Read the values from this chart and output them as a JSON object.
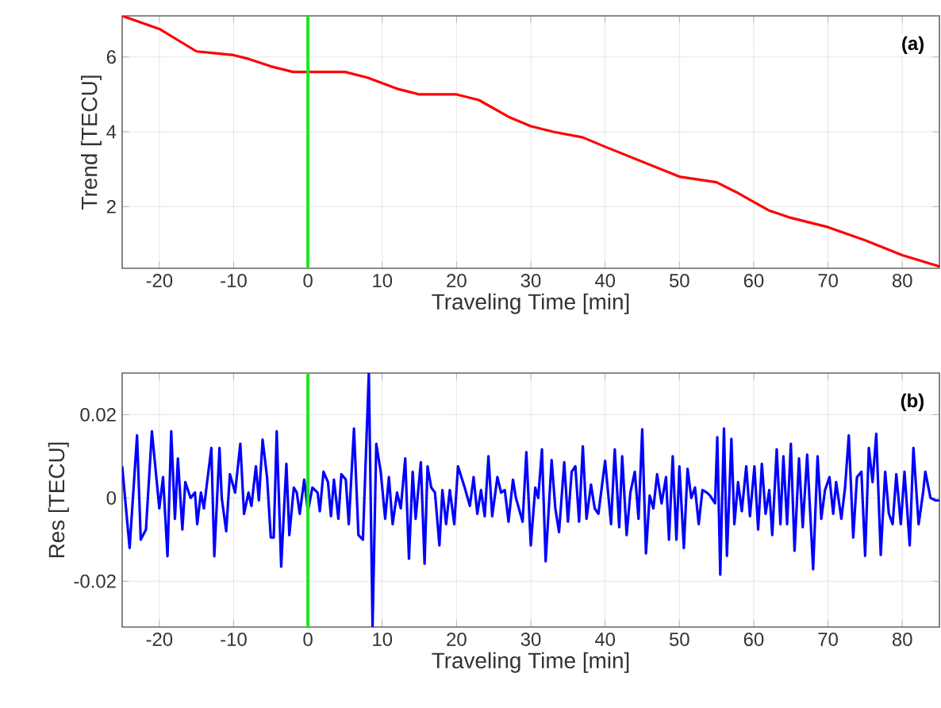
{
  "chart_data": [
    {
      "type": "line",
      "ylabel": "Trend [TECU]",
      "xlabel": "Traveling Time [min]",
      "annotations": [
        "(a)"
      ],
      "grid": true,
      "xlim": [
        -25,
        85
      ],
      "ylim": [
        0.35,
        7.1
      ],
      "xticks": [
        -20,
        -10,
        0,
        10,
        20,
        30,
        40,
        50,
        60,
        70,
        80
      ],
      "yticks": [
        2,
        4,
        6
      ],
      "ref_lines": [
        {
          "axis": "x",
          "value": 0,
          "color": "#1ee61e"
        }
      ],
      "x": [
        -25,
        -20,
        -15,
        -10,
        -8,
        -5,
        -2,
        0,
        5,
        8,
        12,
        15,
        20,
        23,
        27,
        30,
        33,
        37,
        40,
        45,
        50,
        55,
        58,
        62,
        65,
        70,
        75,
        80,
        85
      ],
      "series": [
        {
          "color": "#ff0000",
          "values": [
            7.1,
            6.75,
            6.15,
            6.05,
            5.95,
            5.75,
            5.6,
            5.6,
            5.6,
            5.45,
            5.15,
            5.0,
            5.0,
            4.85,
            4.4,
            4.15,
            4.0,
            3.85,
            3.6,
            3.2,
            2.8,
            2.65,
            2.35,
            1.9,
            1.7,
            1.45,
            1.1,
            0.7,
            0.4
          ]
        }
      ]
    },
    {
      "type": "line",
      "ylabel": "Res [TECU]",
      "xlabel": "Traveling Time [min]",
      "annotations": [
        "(b)"
      ],
      "grid": true,
      "xlim": [
        -25,
        85
      ],
      "ylim": [
        -0.031,
        0.03
      ],
      "xticks": [
        -20,
        -10,
        0,
        10,
        20,
        30,
        40,
        50,
        60,
        70,
        80
      ],
      "yticks": [
        -0.02,
        0,
        0.02
      ],
      "ref_lines": [
        {
          "axis": "x",
          "value": 0,
          "color": "#1ee61e"
        }
      ],
      "x": [
        -25,
        -24,
        -23,
        -22.5,
        -21.8,
        -21.0,
        -20,
        -19.5,
        -18.9,
        -18.4,
        -17.9,
        -17.5,
        -16.9,
        -16.5,
        -15.8,
        -15.2,
        -14.9,
        -14.4,
        -14,
        -13.7,
        -13,
        -12.6,
        -11.9,
        -11.6,
        -11,
        -10.5,
        -9.8,
        -9.1,
        -8.6,
        -8.0,
        -7.6,
        -7.0,
        -6.6,
        -6.1,
        -5.5,
        -5.0,
        -4.6,
        -4.2,
        -3.6,
        -2.9,
        -2.5,
        -1.9,
        -1.5,
        -1.1,
        -0.5,
        0,
        0.6,
        1.3,
        1.6,
        2.1,
        2.7,
        3.1,
        3.5,
        4.1,
        4.5,
        5.1,
        5.5,
        6.2,
        6.8,
        7.4,
        8.2,
        8.7,
        9.2,
        9.8,
        10.4,
        10.9,
        11.4,
        12,
        12.5,
        13.1,
        13.6,
        14.1,
        14.5,
        15.2,
        15.7,
        16.1,
        16.6,
        17.1,
        17.7,
        18.1,
        18.6,
        19.1,
        19.7,
        20.2,
        21.1,
        21.8,
        22.3,
        22.8,
        23.3,
        23.8,
        24.3,
        24.8,
        25.5,
        26.0,
        26.5,
        27.0,
        27.6,
        28.0,
        28.9,
        29.4,
        30.0,
        30.6,
        31.0,
        31.5,
        32.0,
        32.8,
        33.3,
        33.8,
        34.5,
        35.0,
        35.5,
        36.0,
        36.5,
        37.0,
        37.5,
        38.1,
        38.6,
        39.1,
        40.0,
        40.8,
        41.3,
        41.9,
        42.3,
        42.9,
        43.4,
        44.0,
        44.5,
        45.0,
        45.5,
        46.0,
        46.5,
        47.0,
        47.6,
        48.2,
        48.6,
        49.1,
        49.6,
        50.0,
        50.6,
        51.1,
        51.6,
        52.1,
        52.6,
        53.1,
        53.7,
        54.1,
        54.8,
        55.1,
        55.5,
        56.0,
        56.4,
        57.0,
        57.4,
        57.9,
        58.4,
        59.0,
        59.5,
        60.1,
        60.6,
        61.1,
        61.6,
        62.1,
        62.5,
        63.1,
        63.6,
        64.0,
        64.5,
        65.0,
        65.5,
        66.1,
        66.6,
        67.2,
        68.0,
        68.6,
        69.1,
        69.6,
        70.2,
        70.7,
        71.1,
        71.8,
        72.3,
        72.8,
        73.4,
        73.9,
        74.5,
        75.0,
        75.5,
        76.0,
        76.5,
        77.1,
        77.7,
        78.2,
        78.7,
        79.2,
        79.8,
        80.3,
        81.0,
        81.5,
        82.2,
        82.8,
        83.1,
        83.8,
        84.5,
        85
      ],
      "series": [
        {
          "color": "#0000ff",
          "values": [
            0.0076,
            -0.012,
            0.015,
            -0.01,
            -0.0076,
            0.016,
            -0.0025,
            0.005,
            -0.014,
            0.016,
            -0.005,
            0.0095,
            -0.0076,
            0.0038,
            0,
            0.0013,
            -0.0063,
            0.0013,
            -0.0025,
            0.0019,
            0.012,
            -0.014,
            0.012,
            0,
            -0.008,
            0.0057,
            0.0013,
            0.013,
            -0.0038,
            0.0013,
            -0.0019,
            0.0076,
            -0.0006,
            0.014,
            0.005,
            -0.0095,
            -0.0095,
            0.016,
            -0.0165,
            0.0082,
            -0.0089,
            0.0025,
            0.0013,
            -0.0038,
            0.0044,
            -0.0032,
            0.0025,
            0.0013,
            -0.0032,
            0.0063,
            0.0038,
            -0.0044,
            0.0044,
            -0.005,
            0.0057,
            0.0044,
            -0.0063,
            0.0167,
            -0.0089,
            -0.01,
            0.03,
            -0.031,
            0.013,
            0.0063,
            -0.005,
            0.005,
            -0.0063,
            0.0013,
            -0.0025,
            0.0095,
            -0.0146,
            0.0063,
            -0.005,
            0.0086,
            -0.0158,
            0.0076,
            0.0025,
            0.0013,
            -0.0114,
            0.0019,
            -0.0063,
            0.0019,
            -0.0063,
            0.0076,
            0.0025,
            -0.0019,
            0.005,
            -0.0038,
            0.0019,
            -0.0044,
            0.01,
            -0.0044,
            0.005,
            0.0013,
            0.0019,
            -0.0057,
            0.0044,
            0,
            -0.0057,
            0.011,
            -0.0114,
            0.0025,
            0,
            0.0117,
            -0.0152,
            0.0091,
            -0.0025,
            -0.0082,
            0.0086,
            -0.0057,
            0.0063,
            0.0076,
            -0.0057,
            0.0124,
            -0.005,
            0.0032,
            -0.0025,
            -0.0038,
            0.0089,
            -0.0063,
            0.0117,
            -0.007,
            0.01,
            -0.0089,
            0.0013,
            0.0063,
            -0.005,
            0.0165,
            -0.0133,
            0.0006,
            -0.0025,
            0.0057,
            -0.0013,
            0.005,
            -0.01,
            0.01,
            -0.01,
            0.0076,
            -0.012,
            0.007,
            0,
            0.0025,
            -0.0063,
            0.0019,
            0.0013,
            0.0006,
            -0.0013,
            0.0146,
            -0.0184,
            0.0167,
            -0.0139,
            0.0142,
            -0.0063,
            0.0038,
            -0.0032,
            0.0076,
            -0.0044,
            0.0076,
            -0.0076,
            0.0082,
            -0.0038,
            0.0019,
            -0.0089,
            0.0117,
            -0.0063,
            0.01,
            -0.0063,
            0.013,
            -0.0127,
            0.0095,
            -0.007,
            0.0104,
            -0.0171,
            0.01,
            -0.005,
            0.0019,
            0.005,
            -0.0038,
            0.0038,
            -0.005,
            0.0025,
            0.015,
            -0.0095,
            0.005,
            0.0063,
            -0.0139,
            0.012,
            0.0038,
            0.0154,
            -0.0137,
            0.0063,
            -0.0038,
            -0.0063,
            0.0057,
            -0.0063,
            0.0063,
            -0.0114,
            0.012,
            -0.0063,
            0.0013,
            0.0063,
            0,
            -0.0006,
            -0.0006
          ]
        }
      ]
    }
  ]
}
